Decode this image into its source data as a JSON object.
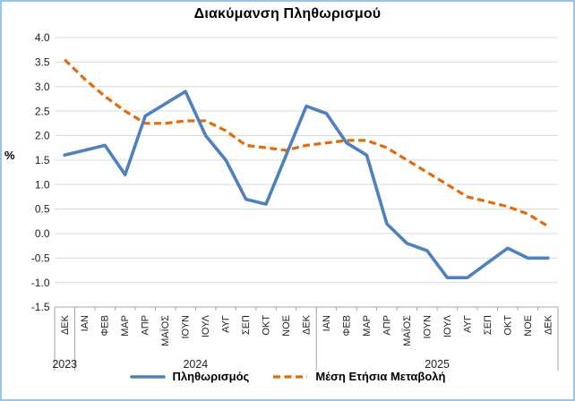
{
  "chart_data": {
    "type": "line",
    "title": "Διακύμανση Πληθωρισμού",
    "ylabel": "%",
    "categories": [
      "ΔΕΚ",
      "ΙΑΝ",
      "ΦΕΒ",
      "ΜΑΡ",
      "ΑΠΡ",
      "ΜΑΪΟΣ",
      "ΙΟΥΝ",
      "ΙΟΥΛ",
      "ΑΥΓ",
      "ΣΕΠ",
      "ΟΚΤ",
      "ΝΟΕ",
      "ΔΕΚ",
      "ΙΑΝ",
      "ΦΕΒ",
      "ΜΑΡ",
      "ΑΠΡ",
      "ΜΑΪΟΣ",
      "ΙΟΥΝ",
      "ΙΟΥΛ",
      "ΑΥΓ",
      "ΣΕΠ",
      "ΟΚΤ",
      "ΝΟΕ",
      "ΔΕΚ"
    ],
    "year_groups": [
      {
        "label": "2023",
        "count": 1
      },
      {
        "label": "2024",
        "count": 12
      },
      {
        "label": "2025",
        "count": 12
      }
    ],
    "y_ticks": [
      4.0,
      3.5,
      3.0,
      2.5,
      2.0,
      1.5,
      1.0,
      0.5,
      0.0,
      -0.5,
      -1.0,
      -1.5
    ],
    "y_tick_labels": [
      "4.0",
      "3.5",
      "3.0",
      "2.5",
      "2.0",
      "1.5",
      "1.0",
      "0.5",
      "0.0",
      "-0.5",
      "-1.0",
      "-1.5"
    ],
    "ylim": [
      -1.5,
      4.0
    ],
    "grid": true,
    "legend_position": "bottom",
    "series": [
      {
        "name": "Πληθωρισμός",
        "style": "solid",
        "color": "#4F81BD",
        "values": [
          1.6,
          1.7,
          1.8,
          1.2,
          2.4,
          2.65,
          2.9,
          2.0,
          1.5,
          0.7,
          0.6,
          1.6,
          2.6,
          2.45,
          1.85,
          1.6,
          0.2,
          -0.2,
          -0.35,
          -0.9,
          -0.9,
          -0.6,
          -0.3,
          -0.5,
          -0.5
        ]
      },
      {
        "name": "Μέση Ετήσια Μεταβολή",
        "style": "dashed",
        "color": "#E36C0A",
        "values": [
          3.55,
          3.15,
          2.8,
          2.5,
          2.25,
          2.25,
          2.3,
          2.3,
          2.1,
          1.8,
          1.75,
          1.7,
          1.8,
          1.85,
          1.9,
          1.9,
          1.75,
          1.5,
          1.25,
          1.0,
          0.75,
          0.65,
          0.55,
          0.4,
          0.15
        ]
      }
    ]
  },
  "colors": {
    "grid": "#D9D9D9",
    "axis": "#A6A6A6",
    "text": "#1f1f1f",
    "frame_border": "#9DC3E6",
    "background": "#FFFFFF"
  }
}
